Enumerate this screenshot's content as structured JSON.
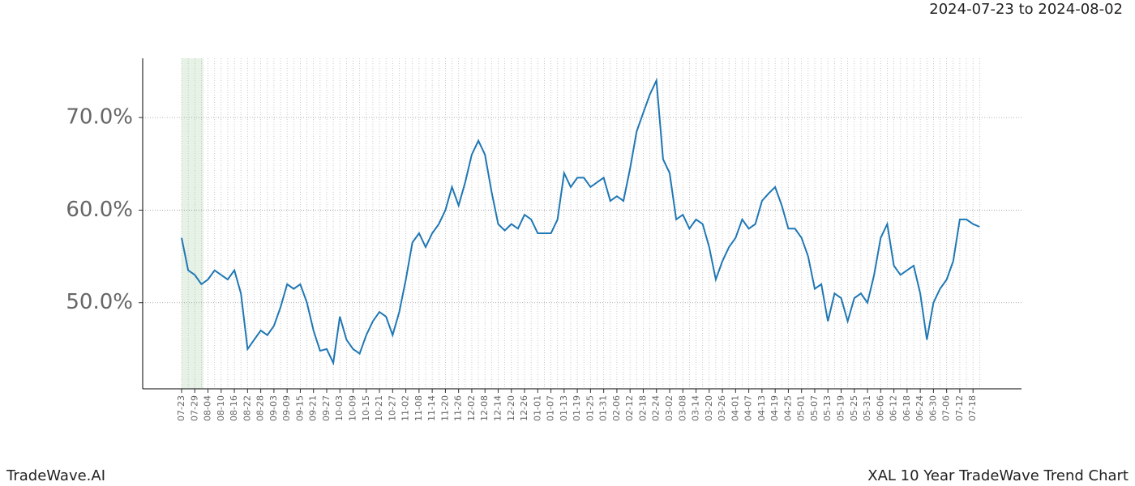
{
  "chart_data": {
    "type": "line",
    "date_range": "2024-07-23 to 2024-08-02",
    "footer_left": "TradeWave.AI",
    "footer_right": "XAL 10 Year TradeWave Trend Chart",
    "categories": [
      "07-23",
      null,
      "07-29",
      null,
      "08-04",
      null,
      "08-10",
      null,
      "08-16",
      null,
      "08-22",
      null,
      "08-28",
      null,
      "09-03",
      null,
      "09-09",
      null,
      "09-15",
      null,
      "09-21",
      null,
      "09-27",
      null,
      "10-03",
      null,
      "10-09",
      null,
      "10-15",
      null,
      "10-21",
      null,
      "10-27",
      null,
      "11-02",
      null,
      "11-08",
      null,
      "11-14",
      null,
      "11-20",
      null,
      "11-26",
      null,
      "12-02",
      null,
      "12-08",
      null,
      "12-14",
      null,
      "12-20",
      null,
      "12-26",
      null,
      "01-01",
      null,
      "01-07",
      null,
      "01-13",
      null,
      "01-19",
      null,
      "01-25",
      null,
      "01-31",
      null,
      "02-06",
      null,
      "02-12",
      null,
      "02-18",
      null,
      "02-24",
      null,
      "03-02",
      null,
      "03-08",
      null,
      "03-14",
      null,
      "03-20",
      null,
      "03-26",
      null,
      "04-01",
      null,
      "04-07",
      null,
      "04-13",
      null,
      "04-19",
      null,
      "04-25",
      null,
      "05-01",
      null,
      "05-07",
      null,
      "05-13",
      null,
      "05-19",
      null,
      "05-25",
      null,
      "05-31",
      null,
      "06-06",
      null,
      "06-12",
      null,
      "06-18",
      null,
      "06-24",
      null,
      "06-30",
      null,
      "07-06",
      null,
      "07-12",
      null,
      "07-18",
      null
    ],
    "series": [
      {
        "name": "XAL",
        "color": "#1f77b4",
        "values": [
          57,
          53.5,
          53,
          52,
          52.5,
          53.5,
          53,
          52.5,
          53.5,
          51,
          45,
          46,
          47,
          46.5,
          47.5,
          49.5,
          52,
          51.5,
          52,
          50,
          47,
          44.8,
          45,
          43.5,
          48.5,
          46,
          45,
          44.5,
          46.5,
          48,
          49,
          48.5,
          46.5,
          49,
          52.5,
          56.5,
          57.5,
          56,
          57.5,
          58.5,
          60,
          62.5,
          60.5,
          63,
          66,
          67.5,
          66,
          62,
          58.5,
          57.8,
          58.5,
          58,
          59.5,
          59,
          57.5,
          57.5,
          57.5,
          59,
          64,
          62.5,
          63.5,
          63.5,
          62.5,
          63,
          63.5,
          61,
          61.5,
          61,
          64.5,
          68.5,
          70.5,
          72.5,
          74,
          65.5,
          64,
          59,
          59.5,
          58,
          59,
          58.5,
          56,
          52.5,
          54.5,
          56,
          57,
          59,
          58,
          58.5,
          61,
          61.8,
          62.5,
          60.5,
          58,
          58,
          57,
          55,
          51.5,
          52,
          48,
          51,
          50.5,
          48,
          50.5,
          51,
          50,
          53,
          57,
          58.5,
          54,
          53,
          53.5,
          54,
          51,
          46,
          50,
          51.5,
          52.5,
          54.5,
          59,
          59,
          58.5,
          58.2
        ]
      }
    ],
    "highlight": [
      0,
      3.33
    ],
    "highlight_color": "#e6f2e6",
    "ylim": [
      40.7,
      76.4
    ],
    "yticks": [
      {
        "value": 50,
        "label": "50.0%"
      },
      {
        "value": 60,
        "label": "60.0%"
      },
      {
        "value": 70,
        "label": "70.0%"
      }
    ],
    "grid": true
  }
}
